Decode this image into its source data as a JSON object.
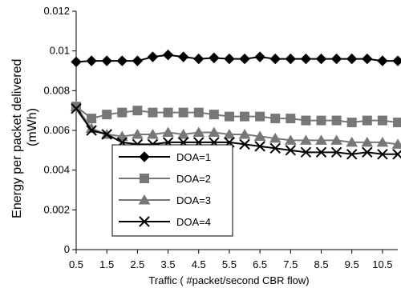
{
  "chart_data": {
    "type": "line",
    "title": "",
    "xlabel": "Traffic ( #packet/second CBR flow)",
    "ylabel_lines": [
      "Energy  per packet delivered",
      "(mWh)"
    ],
    "xlim": [
      0.5,
      11
    ],
    "ylim": [
      0,
      0.012
    ],
    "x_ticks": [
      0.5,
      1.5,
      2.5,
      3.5,
      4.5,
      5.5,
      6.5,
      7.5,
      8.5,
      9.5,
      10.5
    ],
    "x_tick_labels": [
      "0.5",
      "1.5",
      "2.5",
      "3.5",
      "4.5",
      "5.5",
      "6.5",
      "7.5",
      "8.5",
      "9.5",
      "10.5"
    ],
    "y_ticks": [
      0,
      0.002,
      0.004,
      0.006,
      0.008,
      0.01,
      0.012
    ],
    "y_tick_labels": [
      "0",
      "0.002",
      "0.004",
      "0.006",
      "0.008",
      "0.01",
      "0.012"
    ],
    "x": [
      0.5,
      1,
      1.5,
      2,
      2.5,
      3,
      3.5,
      4,
      4.5,
      5,
      5.5,
      6,
      6.5,
      7,
      7.5,
      8,
      8.5,
      9,
      9.5,
      10,
      10.5,
      11
    ],
    "series": [
      {
        "name": "DOA=1",
        "marker": "diamond",
        "color": "#000000",
        "values": [
          0.00945,
          0.0095,
          0.0095,
          0.0095,
          0.0095,
          0.0097,
          0.0098,
          0.0097,
          0.0096,
          0.00965,
          0.0096,
          0.0096,
          0.0097,
          0.0096,
          0.0096,
          0.0096,
          0.0096,
          0.0096,
          0.0096,
          0.0096,
          0.0095,
          0.0095
        ]
      },
      {
        "name": "DOA=2",
        "marker": "square",
        "color": "#777777",
        "values": [
          0.0072,
          0.0066,
          0.0068,
          0.0069,
          0.007,
          0.0069,
          0.0069,
          0.0069,
          0.0069,
          0.0068,
          0.0067,
          0.0067,
          0.0067,
          0.0066,
          0.0066,
          0.0065,
          0.0065,
          0.0065,
          0.0064,
          0.0065,
          0.0065,
          0.0064
        ]
      },
      {
        "name": "DOA=3",
        "marker": "triangle",
        "color": "#777777",
        "values": [
          0.0072,
          0.0061,
          0.0058,
          0.0057,
          0.0058,
          0.0058,
          0.0059,
          0.0058,
          0.0059,
          0.0059,
          0.0058,
          0.0058,
          0.0057,
          0.0056,
          0.0055,
          0.0055,
          0.0055,
          0.0055,
          0.0054,
          0.0054,
          0.0054,
          0.0053
        ]
      },
      {
        "name": "DOA=4",
        "marker": "x",
        "color": "#000000",
        "values": [
          0.0071,
          0.006,
          0.0058,
          0.0054,
          0.0053,
          0.0053,
          0.0054,
          0.0054,
          0.0054,
          0.0054,
          0.0054,
          0.0053,
          0.0052,
          0.0051,
          0.005,
          0.0049,
          0.0049,
          0.0049,
          0.0048,
          0.0049,
          0.0048,
          0.0048
        ]
      }
    ],
    "grid": false,
    "legend_position": "lower-left"
  }
}
